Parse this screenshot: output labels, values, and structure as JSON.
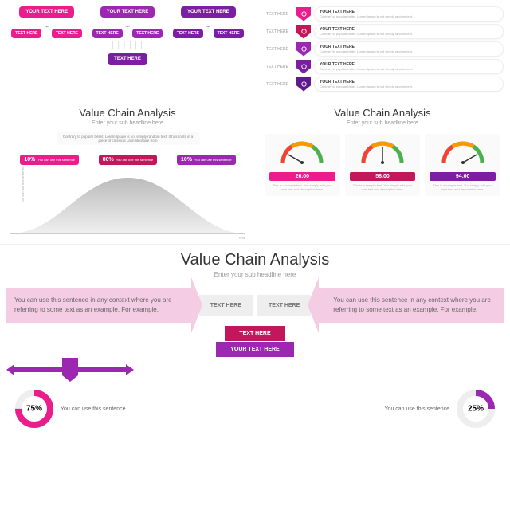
{
  "colors": {
    "pink": "#e91e8c",
    "magenta": "#c2185b",
    "purple": "#9c27b0",
    "darkpurple": "#7b1fa2",
    "deeppurple": "#5e1a8e",
    "lightpink": "#f4cce4",
    "grey": "#eeeeee"
  },
  "panel1": {
    "top": [
      {
        "label": "YOUR TEXT HERE",
        "color": "#e91e8c"
      },
      {
        "label": "YOUR TEXT HERE",
        "color": "#9c27b0"
      },
      {
        "label": "YOUR TEXT HERE",
        "color": "#7b1fa2"
      }
    ],
    "mid": [
      {
        "label": "TEXT HERE",
        "color": "#e91e8c"
      },
      {
        "label": "TEXT HERE",
        "color": "#e91e8c"
      },
      {
        "label": "TEXT HERE",
        "color": "#9c27b0"
      },
      {
        "label": "TEXT HERE",
        "color": "#9c27b0"
      },
      {
        "label": "TEXT HERE",
        "color": "#7b1fa2"
      },
      {
        "label": "TEXT HERE",
        "color": "#7b1fa2"
      }
    ],
    "bottom": {
      "label": "TEXT HERE",
      "color": "#7b1fa2"
    }
  },
  "panel2": {
    "rows": [
      {
        "left": "TEXT HERE",
        "color": "#e91e8c",
        "title": "YOUR TEXT HERE",
        "text": "Contrary to popular belief. Lorem Ipsum is not simply random text."
      },
      {
        "left": "TEXT HERE",
        "color": "#c2185b",
        "title": "YOUR TEXT HERE",
        "text": "Contrary to popular belief. Lorem Ipsum is not simply random text."
      },
      {
        "left": "TEXT HERE",
        "color": "#9c27b0",
        "title": "YOUR TEXT HERE",
        "text": "Contrary to popular belief. Lorem Ipsum is not simply random text."
      },
      {
        "left": "TEXT HERE",
        "color": "#7b1fa2",
        "title": "YOUR TEXT HERE",
        "text": "Contrary to popular belief. Lorem Ipsum is not simply random text."
      },
      {
        "left": "TEXT HERE",
        "color": "#5e1a8e",
        "title": "YOUR TEXT HERE",
        "text": "Contrary to popular belief. Lorem Ipsum is not simply random text."
      }
    ]
  },
  "panel3": {
    "title": "Value Chain Analysis",
    "subtitle": "Enter your sub headline here",
    "note": "Contrary to popular belief, Lorem Ipsum is not simply random text. It has roots in a piece of classical Latin literature from",
    "labels": [
      {
        "pct": "10%",
        "text": "You can use this sentence",
        "color": "#e91e8c"
      },
      {
        "pct": "80%",
        "text": "You can use this sentence",
        "color": "#c2185b"
      },
      {
        "pct": "10%",
        "text": "You can use this sentence",
        "color": "#9c27b0"
      }
    ],
    "ylabel": "You can use this sentence",
    "xlabel": "Time"
  },
  "panel4": {
    "title": "Value Chain Analysis",
    "subtitle": "Enter your sub headline here",
    "gauges": [
      {
        "value": "26.00",
        "color": "#e91e8c",
        "needle": 30
      },
      {
        "value": "58.00",
        "color": "#c2185b",
        "needle": 90
      },
      {
        "value": "94.00",
        "color": "#7b1fa2",
        "needle": 150
      }
    ],
    "desc": "This is a sample text. You simply add your own text and description here."
  },
  "big": {
    "title": "Value Chain Analysis",
    "subtitle": "Enter your sub headline here",
    "sidetext": "You can use this sentence in any context where you are referring to some text as an example. For example,",
    "midboxes": [
      "TEXT HERE",
      "TEXT HERE"
    ],
    "center": [
      {
        "label": "TEXT HERE",
        "color": "#c2185b"
      },
      {
        "label": "YOUR TEXT HERE",
        "color": "#9c27b0"
      }
    ],
    "donuts": [
      {
        "pct": 75,
        "label": "You can use this sentence",
        "color": "#e91e8c"
      },
      {
        "pct": 25,
        "label": "You can use this sentence",
        "color": "#9c27b0"
      }
    ]
  }
}
